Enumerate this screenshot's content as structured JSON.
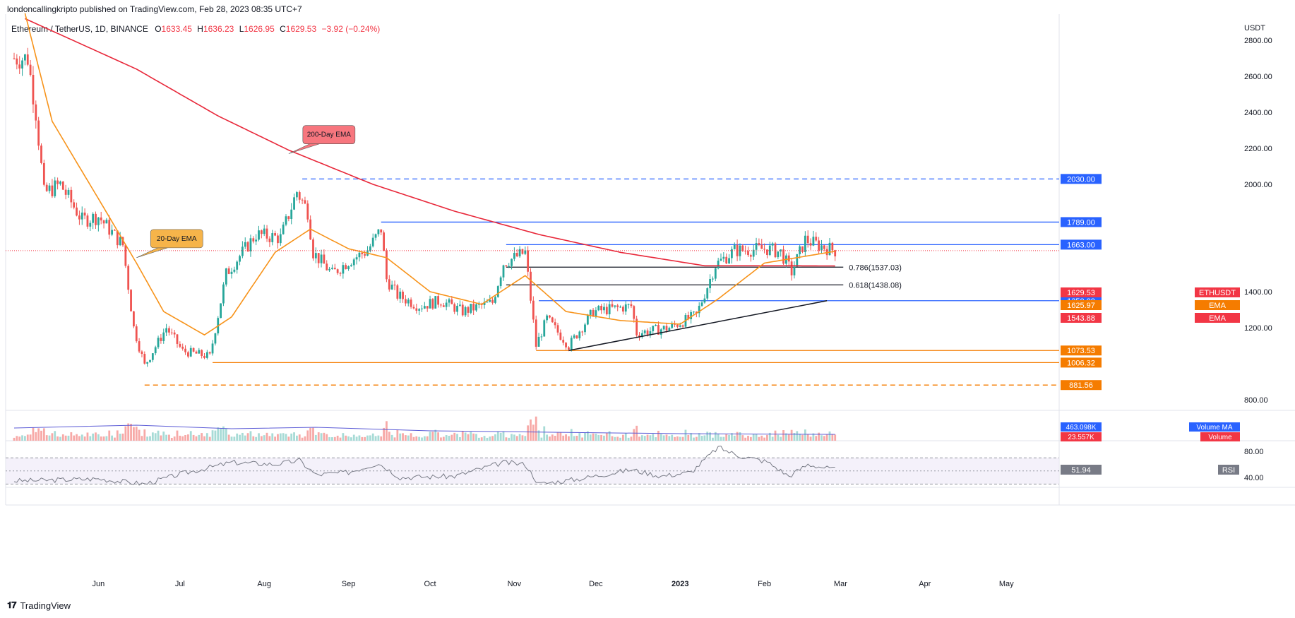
{
  "header": {
    "published": "londoncallingkripto published on TradingView.com, Feb 28, 2023 08:35 UTC+7"
  },
  "legend": {
    "symbol": "Ethereum / TetherUS, 1D, BINANCE",
    "o_label": "O",
    "o": "1633.45",
    "h_label": "H",
    "h": "1636.23",
    "l_label": "L",
    "l": "1626.95",
    "c_label": "C",
    "c": "1629.53",
    "change": "−3.92 (−0.24%)"
  },
  "footer": {
    "brand": "TradingView",
    "logo_icon": "tradingview-logo-icon"
  },
  "colors": {
    "up": "#26a69a",
    "down": "#ef5350",
    "ema200": "#e8283a",
    "ema20": "#f7931a",
    "blue": "#2962ff",
    "orange": "#f57c00",
    "black": "#131722",
    "rsi": "#787b86"
  },
  "chart_data": {
    "type": "candlestick",
    "timeframe": "1D",
    "currency": "USDT",
    "x_labels": [
      "Jun",
      "Jul",
      "Aug",
      "Sep",
      "Oct",
      "Nov",
      "Dec",
      "2023",
      "Feb",
      "Mar",
      "Apr",
      "May"
    ],
    "y_ticks": [
      "2800.00",
      "2600.00",
      "2400.00",
      "2200.00",
      "2000.00",
      "1400.00",
      "1200.00",
      "800.00"
    ],
    "price_series_anchor_points": [
      {
        "date": "2022-05-06",
        "close": 2700
      },
      {
        "date": "2022-05-09",
        "close": 2400
      },
      {
        "date": "2022-05-12",
        "close": 1950
      },
      {
        "date": "2022-05-18",
        "close": 2000
      },
      {
        "date": "2022-05-26",
        "close": 1800
      },
      {
        "date": "2022-06-01",
        "close": 1820
      },
      {
        "date": "2022-06-10",
        "close": 1660
      },
      {
        "date": "2022-06-14",
        "close": 1200
      },
      {
        "date": "2022-06-18",
        "close": 990
      },
      {
        "date": "2022-06-26",
        "close": 1200
      },
      {
        "date": "2022-07-02",
        "close": 1070
      },
      {
        "date": "2022-07-12",
        "close": 1040
      },
      {
        "date": "2022-07-18",
        "close": 1500
      },
      {
        "date": "2022-07-29",
        "close": 1720
      },
      {
        "date": "2022-08-07",
        "close": 1700
      },
      {
        "date": "2022-08-13",
        "close": 1960
      },
      {
        "date": "2022-08-17",
        "close": 1850
      },
      {
        "date": "2022-08-19",
        "close": 1620
      },
      {
        "date": "2022-08-26",
        "close": 1500
      },
      {
        "date": "2022-09-01",
        "close": 1570
      },
      {
        "date": "2022-09-08",
        "close": 1630
      },
      {
        "date": "2022-09-13",
        "close": 1750
      },
      {
        "date": "2022-09-15",
        "close": 1470
      },
      {
        "date": "2022-09-19",
        "close": 1380
      },
      {
        "date": "2022-09-27",
        "close": 1320
      },
      {
        "date": "2022-10-05",
        "close": 1350
      },
      {
        "date": "2022-10-13",
        "close": 1290
      },
      {
        "date": "2022-10-24",
        "close": 1340
      },
      {
        "date": "2022-10-28",
        "close": 1560
      },
      {
        "date": "2022-11-05",
        "close": 1620
      },
      {
        "date": "2022-11-09",
        "close": 1100
      },
      {
        "date": "2022-11-13",
        "close": 1250
      },
      {
        "date": "2022-11-21",
        "close": 1100
      },
      {
        "date": "2022-11-30",
        "close": 1290
      },
      {
        "date": "2022-12-14",
        "close": 1320
      },
      {
        "date": "2022-12-16",
        "close": 1170
      },
      {
        "date": "2022-12-28",
        "close": 1200
      },
      {
        "date": "2023-01-07",
        "close": 1270
      },
      {
        "date": "2023-01-14",
        "close": 1550
      },
      {
        "date": "2023-01-21",
        "close": 1630
      },
      {
        "date": "2023-02-02",
        "close": 1640
      },
      {
        "date": "2023-02-07",
        "close": 1620
      },
      {
        "date": "2023-02-11",
        "close": 1510
      },
      {
        "date": "2023-02-16",
        "close": 1690
      },
      {
        "date": "2023-02-21",
        "close": 1660
      },
      {
        "date": "2023-02-27",
        "close": 1629.53
      }
    ],
    "ema200_anchor_points": [
      {
        "date": "2022-05-05",
        "value": 2920
      },
      {
        "date": "2022-06-15",
        "value": 2640
      },
      {
        "date": "2022-07-15",
        "value": 2380
      },
      {
        "date": "2022-08-10",
        "value": 2190
      },
      {
        "date": "2022-09-10",
        "value": 2000
      },
      {
        "date": "2022-10-10",
        "value": 1850
      },
      {
        "date": "2022-11-10",
        "value": 1720
      },
      {
        "date": "2022-12-10",
        "value": 1620
      },
      {
        "date": "2023-01-10",
        "value": 1545
      },
      {
        "date": "2023-02-10",
        "value": 1545
      },
      {
        "date": "2023-02-27",
        "value": 1543.88
      }
    ],
    "ema20_anchor_points": [
      {
        "date": "2022-05-05",
        "value": 2950
      },
      {
        "date": "2022-05-15",
        "value": 2350
      },
      {
        "date": "2022-06-01",
        "value": 1920
      },
      {
        "date": "2022-06-15",
        "value": 1560
      },
      {
        "date": "2022-06-25",
        "value": 1290
      },
      {
        "date": "2022-07-10",
        "value": 1160
      },
      {
        "date": "2022-07-20",
        "value": 1260
      },
      {
        "date": "2022-08-05",
        "value": 1620
      },
      {
        "date": "2022-08-18",
        "value": 1750
      },
      {
        "date": "2022-09-01",
        "value": 1640
      },
      {
        "date": "2022-09-15",
        "value": 1590
      },
      {
        "date": "2022-10-01",
        "value": 1400
      },
      {
        "date": "2022-10-20",
        "value": 1330
      },
      {
        "date": "2022-11-05",
        "value": 1490
      },
      {
        "date": "2022-11-20",
        "value": 1290
      },
      {
        "date": "2022-12-10",
        "value": 1240
      },
      {
        "date": "2023-01-01",
        "value": 1220
      },
      {
        "date": "2023-01-15",
        "value": 1360
      },
      {
        "date": "2023-02-01",
        "value": 1560
      },
      {
        "date": "2023-02-27",
        "value": 1625.97
      }
    ],
    "horizontal_levels": [
      {
        "label": "2030.00",
        "value": 2030,
        "style": "dashed",
        "color": "#2962ff",
        "from": "2022-08-15"
      },
      {
        "label": "1789.00",
        "value": 1789,
        "style": "solid",
        "color": "#2962ff",
        "from": "2022-09-13"
      },
      {
        "label": "1663.00",
        "value": 1663,
        "style": "solid",
        "color": "#2962ff",
        "from": "2022-10-29"
      },
      {
        "label": "1350.00",
        "value": 1350,
        "style": "solid",
        "color": "#2962ff",
        "from": "2022-11-10"
      },
      {
        "label": "1073.53",
        "value": 1073.53,
        "style": "solid",
        "color": "#f57c00",
        "from": "2022-11-09"
      },
      {
        "label": "1006.32",
        "value": 1006.32,
        "style": "solid",
        "color": "#f57c00",
        "from": "2022-07-13"
      },
      {
        "label": "881.56",
        "value": 881.56,
        "style": "dashed",
        "color": "#f57c00",
        "from": "2022-06-18"
      }
    ],
    "fib_levels": [
      {
        "label": "0.786(1537.03)",
        "value": 1537.03,
        "from": "2022-10-29",
        "to": "2023-03-02"
      },
      {
        "label": "0.618(1438.08)",
        "value": 1438.08,
        "from": "2022-10-29",
        "to": "2023-03-02"
      }
    ],
    "trendline": {
      "from": {
        "date": "2022-11-21",
        "value": 1073.53
      },
      "to": {
        "date": "2023-02-24",
        "value": 1350
      }
    },
    "price_tags": [
      {
        "name": "ETHUSDT",
        "value": "1629.53",
        "price": 1629.53,
        "color": "#f23645"
      },
      {
        "name": "EMA",
        "value": "1625.97",
        "price": 1625.97,
        "color": "#f57c00"
      },
      {
        "name": "EMA",
        "value": "1543.88",
        "price": 1543.88,
        "color": "#f23645"
      }
    ],
    "callouts": [
      {
        "text": "200-Day EMA",
        "color": "#f7767e",
        "date": "2022-08-10",
        "value": 2170
      },
      {
        "text": "20-Day EMA",
        "color": "#f6b44a",
        "date": "2022-06-15",
        "value": 1590
      }
    ],
    "volume": {
      "ma_label": "Volume MA",
      "ma_value": "463.098K",
      "vol_label": "Volume",
      "vol_value": "23.557K"
    },
    "rsi": {
      "label": "RSI",
      "value": "51.94",
      "ticks": [
        "80.00",
        "40.00"
      ],
      "anchor_points": [
        {
          "date": "2022-05-05",
          "value": 35
        },
        {
          "date": "2022-06-01",
          "value": 38
        },
        {
          "date": "2022-06-18",
          "value": 30
        },
        {
          "date": "2022-07-01",
          "value": 45
        },
        {
          "date": "2022-07-20",
          "value": 63
        },
        {
          "date": "2022-08-05",
          "value": 60
        },
        {
          "date": "2022-08-14",
          "value": 66
        },
        {
          "date": "2022-08-20",
          "value": 44
        },
        {
          "date": "2022-09-01",
          "value": 48
        },
        {
          "date": "2022-09-12",
          "value": 62
        },
        {
          "date": "2022-09-20",
          "value": 40
        },
        {
          "date": "2022-10-10",
          "value": 42
        },
        {
          "date": "2022-10-28",
          "value": 63
        },
        {
          "date": "2022-11-05",
          "value": 60
        },
        {
          "date": "2022-11-10",
          "value": 30
        },
        {
          "date": "2022-11-25",
          "value": 38
        },
        {
          "date": "2022-12-14",
          "value": 52
        },
        {
          "date": "2022-12-25",
          "value": 42
        },
        {
          "date": "2023-01-05",
          "value": 48
        },
        {
          "date": "2023-01-15",
          "value": 86
        },
        {
          "date": "2023-01-22",
          "value": 74
        },
        {
          "date": "2023-02-02",
          "value": 64
        },
        {
          "date": "2023-02-10",
          "value": 42
        },
        {
          "date": "2023-02-17",
          "value": 60
        },
        {
          "date": "2023-02-27",
          "value": 51.94
        }
      ]
    }
  }
}
